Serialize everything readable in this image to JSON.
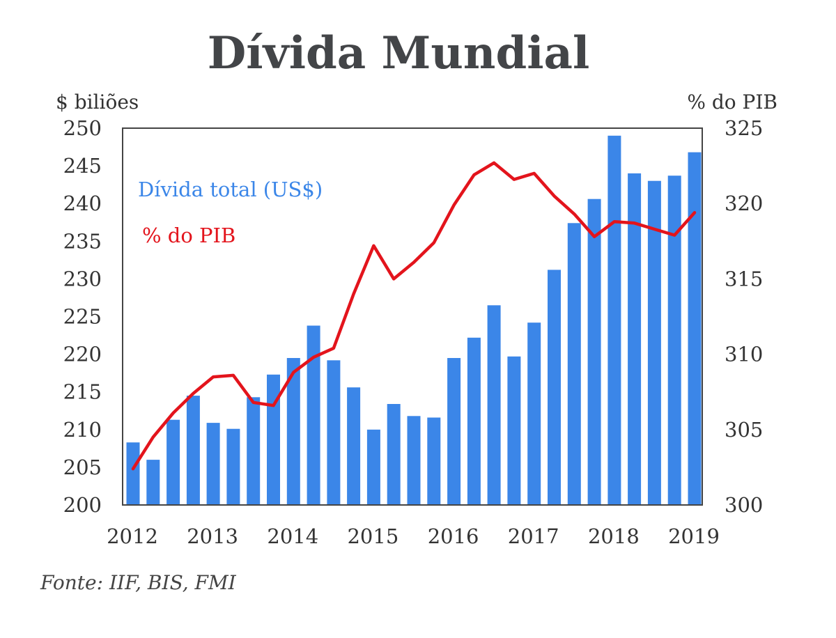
{
  "chart_data": {
    "type": "bar",
    "title": "Dívida Mundial",
    "left_axis_label": "$ biliões",
    "right_axis_label": "% do PIB",
    "source": "Fonte: IIF, BIS, FMI",
    "legend": [
      {
        "label": "Dívida total (US$)",
        "color": "#3B86E8"
      },
      {
        "label": "% do PIB",
        "color": "#E3141C"
      }
    ],
    "left_axis": {
      "min": 200,
      "max": 250,
      "ticks": [
        "200",
        "205",
        "210",
        "215",
        "220",
        "225",
        "230",
        "235",
        "240",
        "245",
        "250"
      ]
    },
    "right_axis": {
      "min": 300,
      "max": 325,
      "ticks": [
        "300",
        "305",
        "310",
        "315",
        "320",
        "325"
      ]
    },
    "x_tick_labels": [
      "2012",
      "2013",
      "2014",
      "2015",
      "2016",
      "2017",
      "2018",
      "2019"
    ],
    "series": [
      {
        "name": "Dívida total (US$)",
        "type": "bar",
        "axis": "left",
        "color": "#3B86E8",
        "values": [
          208.3,
          206.0,
          211.3,
          214.5,
          210.9,
          210.1,
          214.3,
          217.3,
          219.5,
          223.8,
          219.2,
          215.6,
          210.0,
          213.4,
          211.8,
          211.6,
          219.5,
          222.2,
          226.5,
          219.7,
          224.2,
          231.2,
          237.4,
          240.6,
          249.0,
          244.0,
          243.0,
          243.7,
          246.8
        ]
      },
      {
        "name": "% do PIB",
        "type": "line",
        "axis": "right",
        "color": "#E3141C",
        "values": [
          302.4,
          304.5,
          306.1,
          307.4,
          308.5,
          308.6,
          306.8,
          306.6,
          308.8,
          309.8,
          310.4,
          314.0,
          317.2,
          315.0,
          316.1,
          317.4,
          319.9,
          321.9,
          322.7,
          321.6,
          322.0,
          320.5,
          319.3,
          317.8,
          318.8,
          318.7,
          318.3,
          317.9,
          319.4
        ]
      }
    ]
  }
}
